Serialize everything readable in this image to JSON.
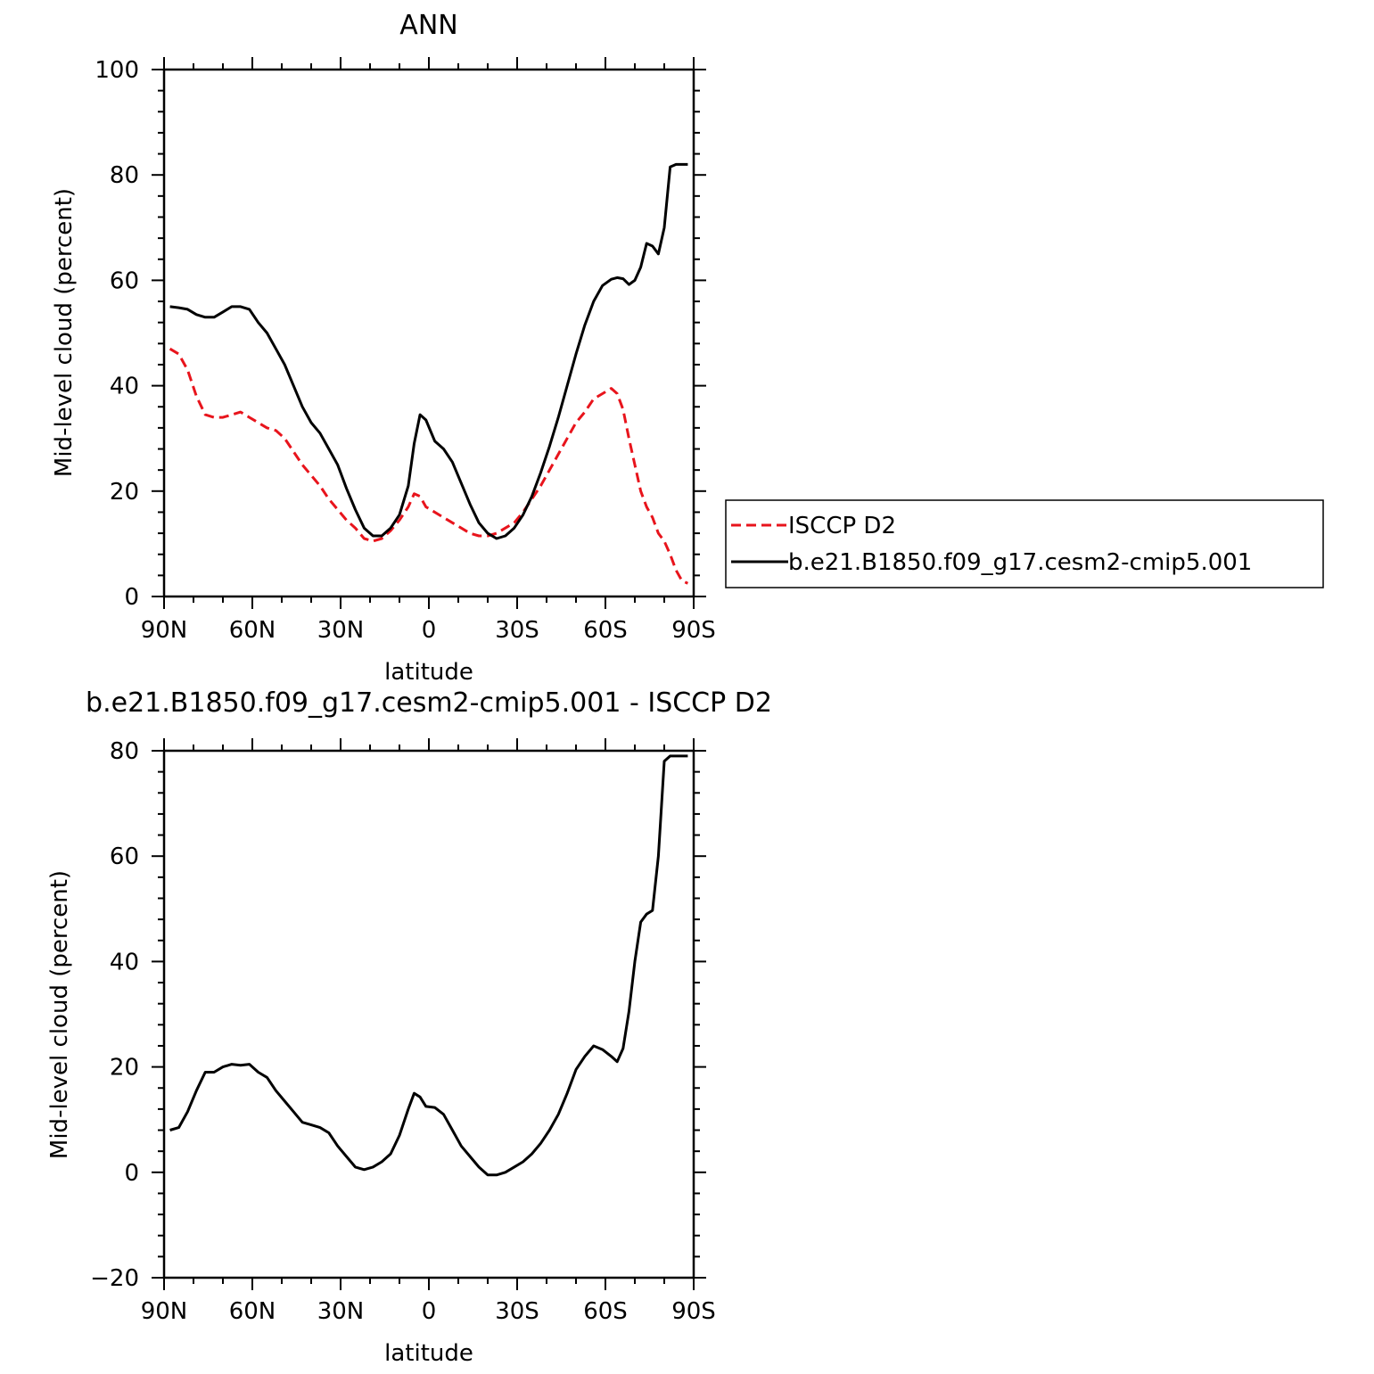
{
  "chart_data": [
    {
      "type": "line",
      "title": "ANN",
      "xlabel": "latitude",
      "ylabel": "Mid-level cloud (percent)",
      "xlim": [
        90,
        -90
      ],
      "ylim": [
        0,
        100
      ],
      "x_ticks": [
        90,
        60,
        30,
        0,
        -30,
        -60,
        -90
      ],
      "x_tick_labels": [
        "90N",
        "60N",
        "30N",
        "0",
        "30S",
        "60S",
        "90S"
      ],
      "y_ticks": [
        0,
        20,
        40,
        60,
        80,
        100
      ],
      "y_tick_labels": [
        "0",
        "20",
        "40",
        "60",
        "80",
        "100"
      ],
      "legend_position": "right",
      "series": [
        {
          "name": "ISCCP D2",
          "color": "#e8141c",
          "dash": "dashed",
          "x": [
            88,
            85,
            82,
            79,
            76,
            73,
            70,
            67,
            64,
            61,
            58,
            55,
            52,
            49,
            46,
            43,
            40,
            37,
            34,
            31,
            28,
            25,
            22,
            19,
            16,
            13,
            10,
            7,
            5,
            3,
            1,
            -2,
            -5,
            -8,
            -11,
            -14,
            -17,
            -20,
            -23,
            -26,
            -29,
            -32,
            -35,
            -38,
            -41,
            -44,
            -47,
            -50,
            -53,
            -56,
            -59,
            -62,
            -64,
            -66,
            -68,
            -70,
            -72,
            -74,
            -76,
            -78,
            -80,
            -82,
            -84,
            -86,
            -88
          ],
          "y": [
            47,
            46,
            43,
            38,
            34.5,
            34,
            34,
            34.5,
            35,
            34,
            33,
            32,
            31.5,
            30,
            27.5,
            25,
            23,
            21,
            18.5,
            16.5,
            14.5,
            13,
            11,
            10.5,
            11,
            12.5,
            14.5,
            17,
            19.5,
            19,
            17,
            16,
            15,
            14,
            13,
            12,
            11.5,
            11.5,
            12,
            13,
            14,
            16,
            18.5,
            21,
            24,
            27,
            30,
            33,
            35,
            37.5,
            38.5,
            39.5,
            38.5,
            35.5,
            30,
            25,
            20,
            17,
            15,
            12,
            10.5,
            8,
            5,
            3,
            2.5
          ]
        },
        {
          "name": "b.e21.B1850.f09_g17.cesm2-cmip5.001",
          "color": "#000000",
          "dash": "solid",
          "x": [
            88,
            85,
            82,
            79,
            76,
            73,
            70,
            67,
            64,
            61,
            58,
            55,
            52,
            49,
            46,
            43,
            40,
            37,
            34,
            31,
            28,
            25,
            22,
            19,
            16,
            13,
            10,
            7,
            5,
            3,
            1,
            -2,
            -5,
            -8,
            -11,
            -14,
            -17,
            -20,
            -23,
            -26,
            -29,
            -32,
            -35,
            -38,
            -41,
            -44,
            -47,
            -50,
            -53,
            -56,
            -59,
            -62,
            -64,
            -66,
            -68,
            -70,
            -72,
            -74,
            -76,
            -78,
            -80,
            -82,
            -84,
            -86,
            -88
          ],
          "y": [
            55,
            54.8,
            54.5,
            53.5,
            53,
            53,
            54,
            55,
            55,
            54.5,
            52,
            50,
            47,
            44,
            40,
            36,
            33,
            31,
            28,
            25,
            20.5,
            16.5,
            13,
            11.5,
            11.5,
            13,
            15.5,
            21,
            29,
            34.5,
            33.5,
            29.5,
            28,
            25.5,
            21.5,
            17.5,
            14,
            12,
            11,
            11.5,
            13,
            15.5,
            19,
            23.5,
            28.5,
            34,
            40,
            46,
            51.5,
            56,
            59,
            60.2,
            60.5,
            60.3,
            59.2,
            60,
            62.5,
            67,
            66.5,
            65,
            70,
            81.5,
            82,
            82,
            82
          ]
        }
      ]
    },
    {
      "type": "line",
      "title": "b.e21.B1850.f09_g17.cesm2-cmip5.001 - ISCCP D2",
      "xlabel": "latitude",
      "ylabel": "Mid-level cloud (percent)",
      "xlim": [
        90,
        -90
      ],
      "ylim": [
        -20,
        80
      ],
      "x_ticks": [
        90,
        60,
        30,
        0,
        -30,
        -60,
        -90
      ],
      "x_tick_labels": [
        "90N",
        "60N",
        "30N",
        "0",
        "30S",
        "60S",
        "90S"
      ],
      "y_ticks": [
        -20,
        0,
        20,
        40,
        60,
        80
      ],
      "y_tick_labels": [
        "−20",
        "0",
        "20",
        "40",
        "60",
        "80"
      ],
      "series": [
        {
          "color": "#000000",
          "dash": "solid",
          "x": [
            88,
            85,
            82,
            79,
            76,
            73,
            70,
            67,
            64,
            61,
            58,
            55,
            52,
            49,
            46,
            43,
            40,
            37,
            34,
            31,
            28,
            25,
            22,
            19,
            16,
            13,
            10,
            7,
            5,
            3,
            1,
            -2,
            -5,
            -8,
            -11,
            -14,
            -17,
            -20,
            -23,
            -26,
            -29,
            -32,
            -35,
            -38,
            -41,
            -44,
            -47,
            -50,
            -53,
            -56,
            -59,
            -62,
            -64,
            -66,
            -68,
            -70,
            -72,
            -74,
            -76,
            -78,
            -80,
            -82,
            -84,
            -86,
            -88
          ],
          "y": [
            8,
            8.5,
            11.5,
            15.5,
            19,
            19,
            20,
            20.5,
            20.3,
            20.5,
            19,
            18,
            15.5,
            13.5,
            11.5,
            9.5,
            9,
            8.5,
            7.5,
            5,
            3,
            1,
            0.5,
            1,
            2,
            3.5,
            7,
            12,
            15,
            14.3,
            12.5,
            12.3,
            11,
            8,
            5,
            3,
            1,
            -0.5,
            -0.5,
            0,
            1,
            2,
            3.5,
            5.5,
            8,
            11,
            15,
            19.5,
            22,
            24,
            23.3,
            22,
            21,
            23.5,
            30.5,
            40,
            47.5,
            49,
            49.7,
            60,
            78,
            79,
            79,
            79,
            79
          ]
        }
      ]
    }
  ]
}
